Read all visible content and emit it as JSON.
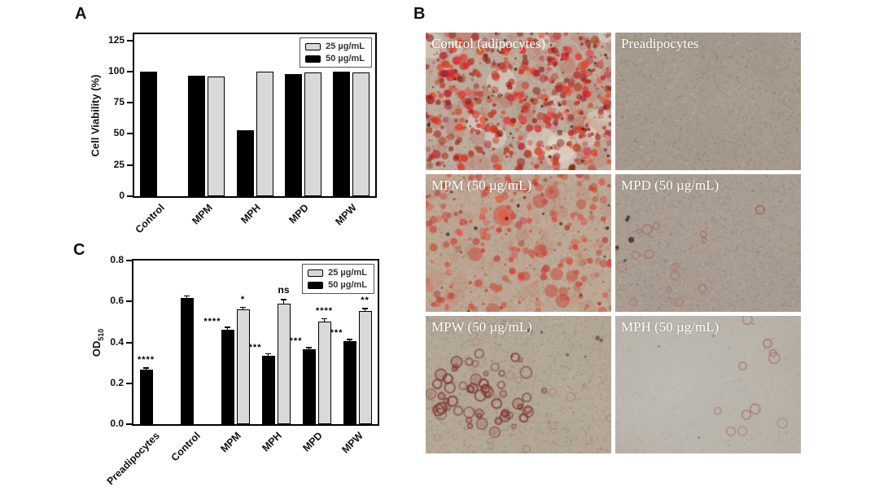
{
  "figure": {
    "background": "#ffffff",
    "panels": {
      "a_label": "A",
      "b_label": "B",
      "c_label": "C"
    }
  },
  "legend": {
    "entries": [
      {
        "label": "25 µg/mL",
        "color": "#d9d9d9"
      },
      {
        "label": "50 µg/mL",
        "color": "#000000"
      }
    ]
  },
  "chart_data": [
    {
      "id": "A",
      "type": "bar",
      "title": "",
      "ylabel": "Cell Viability (%)",
      "ylim": [
        0,
        130
      ],
      "yticks": [
        {
          "v": 0,
          "label": "0"
        },
        {
          "v": 25,
          "label": "25"
        },
        {
          "v": 50,
          "label": "50"
        },
        {
          "v": 75,
          "label": "75"
        },
        {
          "v": 100,
          "label": "100"
        },
        {
          "v": 125,
          "label": "125"
        }
      ],
      "categories": [
        "Control",
        "MPM",
        "MPH",
        "MPD",
        "MPW"
      ],
      "series": [
        {
          "name": "50 µg/mL",
          "color": "#000000",
          "values": [
            100,
            97,
            53,
            98,
            100
          ]
        },
        {
          "name": "25 µg/mL",
          "color": "#d9d9d9",
          "values": [
            null,
            96,
            100,
            99,
            99
          ]
        }
      ],
      "grid": false,
      "legend_position": "top-right"
    },
    {
      "id": "C",
      "type": "bar",
      "title": "",
      "ylabel": "OD",
      "ylabel_sub": "510",
      "ylim": [
        0,
        0.8
      ],
      "yticks": [
        {
          "v": 0.0,
          "label": "0.0"
        },
        {
          "v": 0.2,
          "label": "0.2"
        },
        {
          "v": 0.4,
          "label": "0.4"
        },
        {
          "v": 0.6,
          "label": "0.6"
        },
        {
          "v": 0.8,
          "label": "0.8"
        }
      ],
      "categories": [
        "Preadipocytes",
        "Control",
        "MPM",
        "MPH",
        "MPD",
        "MPW"
      ],
      "series": [
        {
          "name": "50 µg/mL",
          "color": "#000000",
          "values": [
            0.265,
            0.615,
            0.46,
            0.335,
            0.365,
            0.405
          ],
          "errors": [
            0.008,
            0.01,
            0.012,
            0.008,
            0.008,
            0.008
          ],
          "annotations": [
            "****",
            null,
            "****",
            "****",
            "****",
            "****"
          ],
          "annotation_side": [
            "above",
            null,
            "left",
            "left",
            "left",
            "left"
          ]
        },
        {
          "name": "25 µg/mL",
          "color": "#d9d9d9",
          "values": [
            null,
            null,
            0.56,
            0.59,
            0.5,
            0.555
          ],
          "errors": [
            null,
            null,
            0.01,
            0.018,
            0.015,
            0.01
          ],
          "annotations": [
            null,
            null,
            "*",
            "ns",
            "****",
            "**"
          ],
          "annotation_side": [
            null,
            null,
            "above",
            "above",
            "above",
            "above"
          ]
        }
      ],
      "grid": false,
      "legend_position": "top-right"
    }
  ],
  "micrographs": {
    "cells": [
      {
        "label": "Control (adipocytes)",
        "base": "#bdab9b",
        "texture": "dense",
        "stain": "heavy-droplets"
      },
      {
        "label": "Preadipocytes",
        "base": "#a59a8d",
        "texture": "dense",
        "stain": "none"
      },
      {
        "label": "MPM (50 µg/mL)",
        "base": "#bda794",
        "texture": "dense",
        "stain": "many-droplets"
      },
      {
        "label": "MPD (50 µg/mL)",
        "base": "#a99d92",
        "texture": "dense",
        "stain": "few-rings"
      },
      {
        "label": "MPW (50 µg/mL)",
        "base": "#b3a797",
        "texture": "dense",
        "stain": "cluster-rings"
      },
      {
        "label": "MPH (50 µg/mL)",
        "base": "#b6b0a6",
        "texture": "smooth",
        "stain": "sparse-faint-rings"
      }
    ]
  }
}
